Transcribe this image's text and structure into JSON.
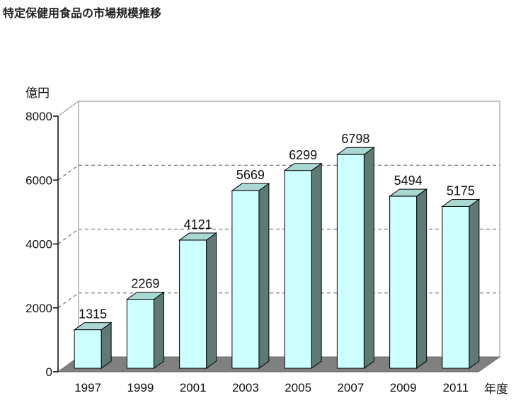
{
  "chart_data": {
    "type": "bar",
    "title": "特定保健用食品の市場規模推移",
    "ylabel": "億円",
    "xlabel": "年度",
    "categories": [
      "1997",
      "1999",
      "2001",
      "2003",
      "2005",
      "2007",
      "2009",
      "2011"
    ],
    "values": [
      1315,
      2269,
      4121,
      5669,
      6299,
      6798,
      5494,
      5175
    ],
    "ylim": [
      0,
      8000
    ],
    "yticks": [
      "0",
      "2000",
      "4000",
      "6000",
      "8000"
    ],
    "grid": true,
    "colors": {
      "bar_front": "#ccffff",
      "bar_side": "#5f7a74",
      "bar_top": "#a9d8d3",
      "floor": "#808080"
    }
  }
}
